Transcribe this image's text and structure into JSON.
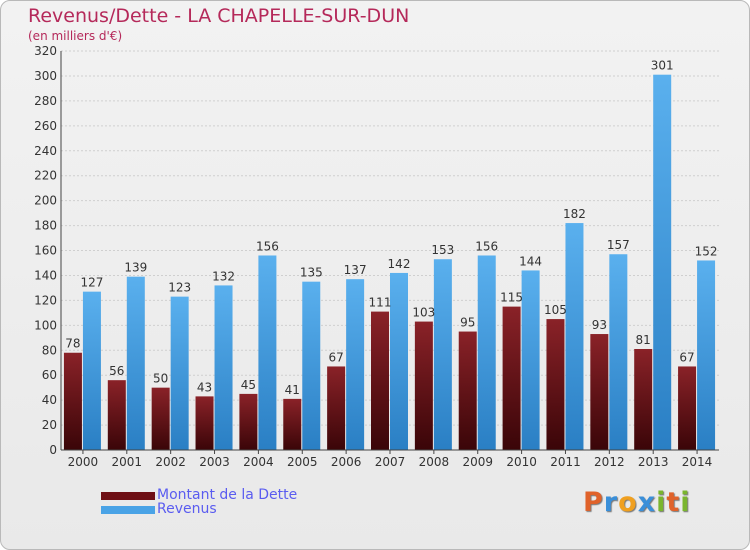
{
  "chart_data": {
    "type": "bar",
    "title": "Revenus/Dette - LA CHAPELLE-SUR-DUN",
    "subtitle": "(en milliers d'€)",
    "categories": [
      "2000",
      "2001",
      "2002",
      "2003",
      "2004",
      "2005",
      "2006",
      "2007",
      "2008",
      "2009",
      "2010",
      "2011",
      "2012",
      "2013",
      "2014"
    ],
    "series": [
      {
        "name": "Montant de la Dette",
        "color": "#7a1a1f",
        "values": [
          78,
          56,
          50,
          43,
          45,
          41,
          67,
          111,
          103,
          95,
          115,
          105,
          93,
          81,
          67
        ]
      },
      {
        "name": "Revenus",
        "color": "#4aa3e6",
        "values": [
          127,
          139,
          123,
          132,
          156,
          135,
          137,
          142,
          153,
          156,
          144,
          182,
          157,
          301,
          152
        ]
      }
    ],
    "ylim": [
      0,
      320
    ],
    "yticks": [
      0,
      20,
      40,
      60,
      80,
      100,
      120,
      140,
      160,
      180,
      200,
      220,
      240,
      260,
      280,
      300,
      320
    ],
    "grid": true,
    "legend_position": "bottom-left"
  },
  "logo": {
    "letters": [
      "P",
      "r",
      "o",
      "x",
      "i",
      "t",
      "i"
    ],
    "colors": [
      "#e0622a",
      "#3a8fd9",
      "#f0a020",
      "#3a8fd9",
      "#7ab52e",
      "#e0622a",
      "#7ab52e"
    ]
  }
}
